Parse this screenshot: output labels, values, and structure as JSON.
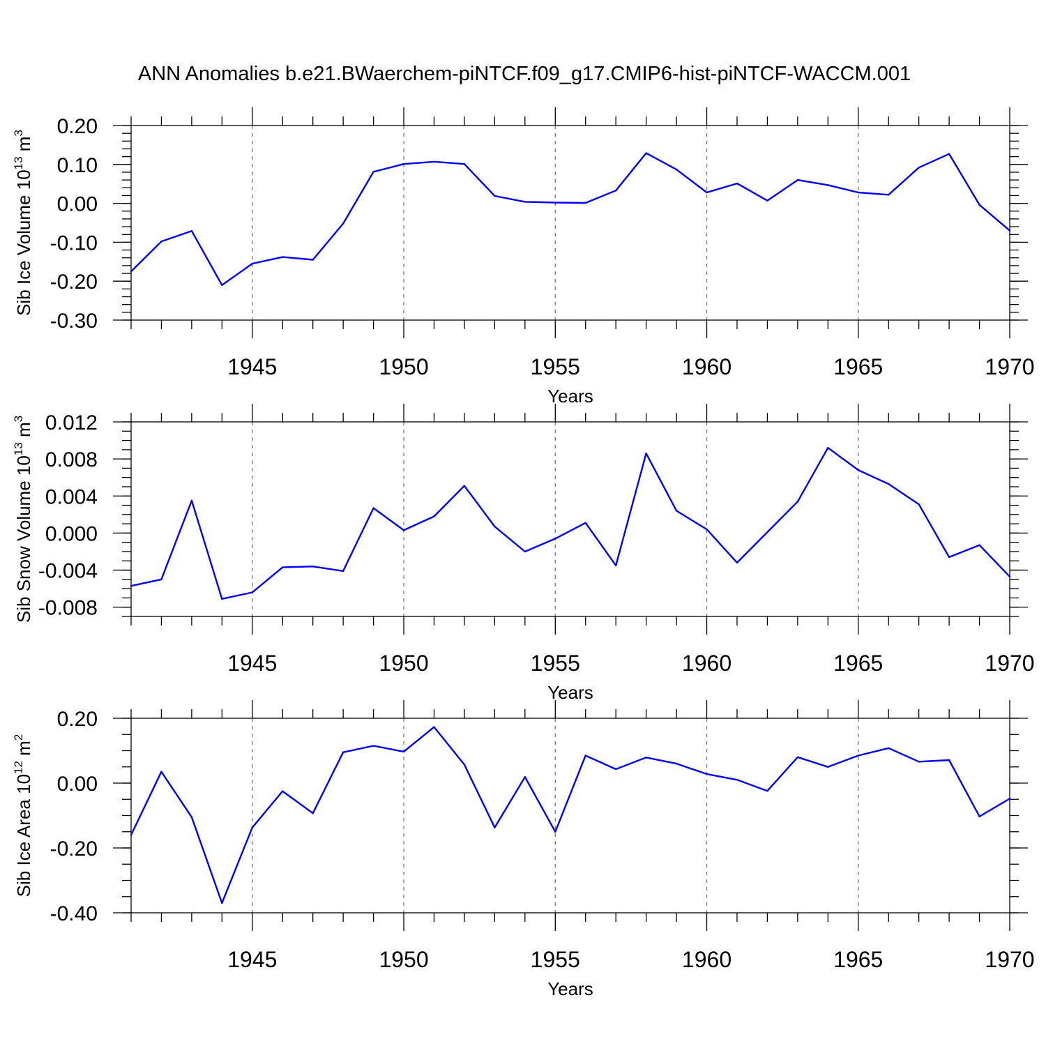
{
  "title": "ANN Anomalies b.e21.BWaerchem-piNTCF.f09_g17.CMIP6-hist-piNTCF-WACCM.001",
  "colors": {
    "line": "#0000ff",
    "axis": "#000000",
    "grid": "#777777"
  },
  "chart_data": [
    {
      "type": "line",
      "ylabel": {
        "base": "Sib Ice Volume 10",
        "exp": "13",
        "unit": " m",
        "unit_exp": "3"
      },
      "xlabel": "Years",
      "xlim": [
        1941,
        1970
      ],
      "ylim": [
        -0.3,
        0.2
      ],
      "yticks": [
        {
          "v": 0.2,
          "label": "0.20"
        },
        {
          "v": 0.1,
          "label": "0.10"
        },
        {
          "v": 0.0,
          "label": "0.00"
        },
        {
          "v": -0.1,
          "label": "-0.10"
        },
        {
          "v": -0.2,
          "label": "-0.20"
        },
        {
          "v": -0.3,
          "label": "-0.30"
        }
      ],
      "yminor": 0.02,
      "xticks": [
        {
          "v": 1945,
          "label": "1945"
        },
        {
          "v": 1950,
          "label": "1950"
        },
        {
          "v": 1955,
          "label": "1955"
        },
        {
          "v": 1960,
          "label": "1960"
        },
        {
          "v": 1965,
          "label": "1965"
        },
        {
          "v": 1970,
          "label": "1970"
        }
      ],
      "grid": "dashed vertical at major x ticks",
      "x": [
        1941,
        1942,
        1943,
        1944,
        1945,
        1946,
        1947,
        1948,
        1949,
        1950,
        1951,
        1952,
        1953,
        1954,
        1955,
        1956,
        1957,
        1958,
        1959,
        1960,
        1961,
        1962,
        1963,
        1964,
        1965,
        1966,
        1967,
        1968,
        1969,
        1970
      ],
      "values": [
        -0.175,
        -0.098,
        -0.071,
        -0.21,
        -0.155,
        -0.138,
        -0.145,
        -0.052,
        0.081,
        0.101,
        0.107,
        0.101,
        0.019,
        0.004,
        0.002,
        0.001,
        0.033,
        0.129,
        0.087,
        0.028,
        0.051,
        0.007,
        0.06,
        0.047,
        0.028,
        0.022,
        0.092,
        0.127,
        -0.004,
        -0.07
      ]
    },
    {
      "type": "line",
      "ylabel": {
        "base": "Sib Snow Volume 10",
        "exp": "13",
        "unit": " m",
        "unit_exp": "3"
      },
      "xlabel": "Years",
      "xlim": [
        1941,
        1970
      ],
      "ylim": [
        -0.009,
        0.012
      ],
      "yticks": [
        {
          "v": 0.012,
          "label": "0.012"
        },
        {
          "v": 0.008,
          "label": "0.008"
        },
        {
          "v": 0.004,
          "label": "0.004"
        },
        {
          "v": 0.0,
          "label": "0.000"
        },
        {
          "v": -0.004,
          "label": "-0.004"
        },
        {
          "v": -0.008,
          "label": "-0.008"
        }
      ],
      "yminor": 0.001,
      "xticks": [
        {
          "v": 1945,
          "label": "1945"
        },
        {
          "v": 1950,
          "label": "1950"
        },
        {
          "v": 1955,
          "label": "1955"
        },
        {
          "v": 1960,
          "label": "1960"
        },
        {
          "v": 1965,
          "label": "1965"
        },
        {
          "v": 1970,
          "label": "1970"
        }
      ],
      "grid": "dashed vertical at major x ticks",
      "x": [
        1941,
        1942,
        1943,
        1944,
        1945,
        1946,
        1947,
        1948,
        1949,
        1950,
        1951,
        1952,
        1953,
        1954,
        1955,
        1956,
        1957,
        1958,
        1959,
        1960,
        1961,
        1962,
        1963,
        1964,
        1965,
        1966,
        1967,
        1968,
        1969,
        1970
      ],
      "values": [
        -0.0057,
        -0.005,
        0.0035,
        -0.0071,
        -0.0064,
        -0.0037,
        -0.0036,
        -0.0041,
        0.0027,
        0.0003,
        0.0018,
        0.0051,
        0.0007,
        -0.002,
        -0.0006,
        0.0011,
        -0.0035,
        0.0086,
        0.0024,
        0.0004,
        -0.0032,
        0.0001,
        0.0034,
        0.0092,
        0.0068,
        0.0053,
        0.0031,
        -0.0026,
        -0.0013,
        -0.0047
      ]
    },
    {
      "type": "line",
      "ylabel": {
        "base": "Sib Ice Area 10",
        "exp": "12",
        "unit": " m",
        "unit_exp": "2"
      },
      "xlabel": "Years",
      "xlim": [
        1941,
        1970
      ],
      "ylim": [
        -0.4,
        0.2
      ],
      "yticks": [
        {
          "v": 0.2,
          "label": "0.20"
        },
        {
          "v": 0.0,
          "label": "0.00"
        },
        {
          "v": -0.2,
          "label": "-0.20"
        },
        {
          "v": -0.4,
          "label": "-0.40"
        }
      ],
      "yminor": 0.05,
      "xticks": [
        {
          "v": 1945,
          "label": "1945"
        },
        {
          "v": 1950,
          "label": "1950"
        },
        {
          "v": 1955,
          "label": "1955"
        },
        {
          "v": 1960,
          "label": "1960"
        },
        {
          "v": 1965,
          "label": "1965"
        },
        {
          "v": 1970,
          "label": "1970"
        }
      ],
      "grid": "dashed vertical at major x ticks",
      "x": [
        1941,
        1942,
        1943,
        1944,
        1945,
        1946,
        1947,
        1948,
        1949,
        1950,
        1951,
        1952,
        1953,
        1954,
        1955,
        1956,
        1957,
        1958,
        1959,
        1960,
        1961,
        1962,
        1963,
        1964,
        1965,
        1966,
        1967,
        1968,
        1969,
        1970
      ],
      "values": [
        -0.16,
        0.035,
        -0.105,
        -0.37,
        -0.137,
        -0.025,
        -0.093,
        0.095,
        0.115,
        0.097,
        0.173,
        0.057,
        -0.137,
        0.019,
        -0.15,
        0.085,
        0.043,
        0.079,
        0.06,
        0.028,
        0.01,
        -0.024,
        0.08,
        0.05,
        0.085,
        0.108,
        0.066,
        0.071,
        -0.103,
        -0.048
      ]
    }
  ]
}
